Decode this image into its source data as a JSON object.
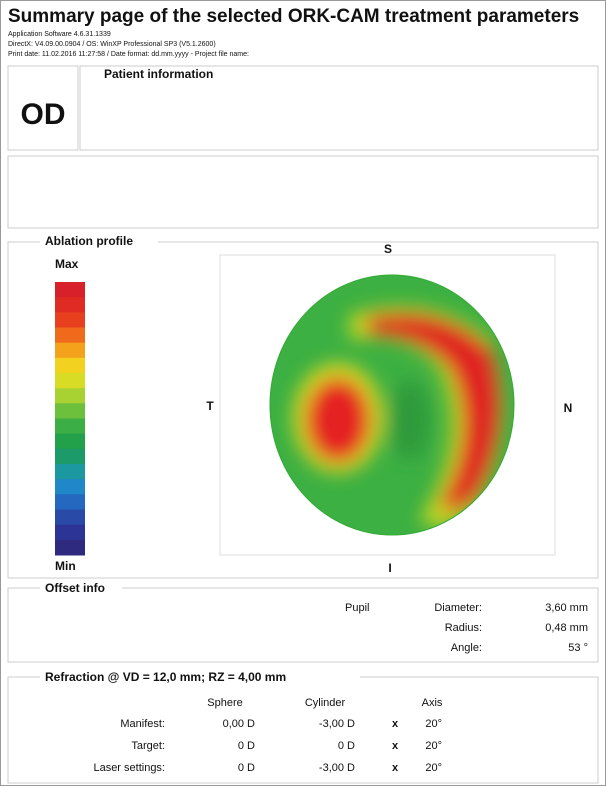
{
  "header": {
    "title": "Summary page of the selected ORK-CAM treatment parameters",
    "info": [
      "Application Software 4.6.31.1339",
      "DirectX: V4.09.00.0904 / OS: WinXP Professional SP3 (V5.1.2600)",
      "Print date: 11.02.2016 11:27:58 / Date format: dd.mm.yyyy  -  Project file name:"
    ]
  },
  "eye": "OD",
  "patient_information": {
    "label": "Patient information"
  },
  "ablation_profile": {
    "label": "Ablation profile",
    "scale_max": "Max",
    "scale_min": "Min",
    "orientation": {
      "superior": "S",
      "temporal": "T",
      "nasal": "N",
      "inferior": "I"
    }
  },
  "offset_info": {
    "label": "Offset info",
    "reference": "Pupil",
    "rows": [
      [
        "Diameter:",
        "3,60 mm"
      ],
      [
        "Radius:",
        "0,48 mm"
      ],
      [
        "Angle:",
        "53 °"
      ]
    ]
  },
  "refraction": {
    "label": "Refraction @ VD = 12,0 mm; RZ = 4,00 mm",
    "columns": [
      "Sphere",
      "Cylinder",
      "Axis"
    ],
    "rows": [
      {
        "label": "Manifest:",
        "sphere": "0,00 D",
        "cylinder": "-3,00 D",
        "x": "x",
        "axis": "20°"
      },
      {
        "label": "Target:",
        "sphere": "0 D",
        "cylinder": "0 D",
        "x": "x",
        "axis": "20°"
      },
      {
        "label": "Laser settings:",
        "sphere": "0 D",
        "cylinder": "-3,00 D",
        "x": "x",
        "axis": "20°"
      }
    ]
  }
}
